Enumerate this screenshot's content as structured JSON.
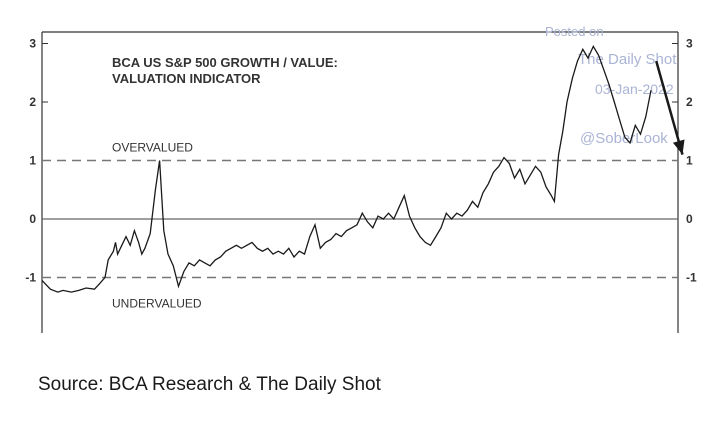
{
  "chart_data": {
    "type": "line",
    "title_line1": "BCA US S&P 500 GROWTH / VALUE:",
    "title_line2": "VALUATION INDICATOR",
    "ylim": [
      -2,
      3
    ],
    "yticks": [
      3,
      2,
      1,
      0,
      -1
    ],
    "grid": false,
    "reference_lines": [
      {
        "value": 1,
        "style": "dashed",
        "label": "OVERVALUED"
      },
      {
        "value": 0,
        "style": "solid",
        "label": ""
      },
      {
        "value": -1,
        "style": "dashed",
        "label": "UNDERVALUED"
      }
    ],
    "watermark": [
      "Posted on",
      "The Daily Shot",
      "03-Jan-2022",
      "@SoberLook"
    ],
    "series": [
      {
        "x": [
          0,
          8,
          15,
          20,
          28,
          35,
          42,
          50,
          55,
          60,
          63,
          68,
          70,
          72,
          76,
          80,
          84,
          88,
          92,
          95,
          98,
          103,
          108,
          112,
          116,
          120,
          125,
          130,
          135,
          140,
          145,
          150,
          155,
          160,
          165,
          170,
          175,
          180,
          185,
          190,
          195,
          200,
          205,
          210,
          215,
          220,
          225,
          230,
          235,
          240,
          245,
          250,
          255,
          260,
          265,
          270,
          275,
          280,
          285,
          290,
          295,
          300,
          305,
          310,
          315,
          320,
          325,
          330,
          335,
          340,
          345,
          350,
          355,
          360,
          365,
          370,
          375,
          380,
          385,
          390,
          395,
          400,
          405,
          410,
          415,
          420,
          425,
          430,
          435,
          440,
          445,
          450,
          455,
          460,
          465,
          470,
          475,
          480,
          485,
          488,
          492,
          496,
          500,
          505,
          510,
          515,
          520,
          525,
          530,
          535,
          540,
          545,
          550,
          555,
          560,
          565,
          570,
          575,
          580
        ],
        "values": [
          -1.05,
          -1.2,
          -1.25,
          -1.22,
          -1.25,
          -1.22,
          -1.18,
          -1.2,
          -1.1,
          -1.0,
          -0.7,
          -0.55,
          -0.4,
          -0.6,
          -0.45,
          -0.3,
          -0.45,
          -0.2,
          -0.4,
          -0.6,
          -0.5,
          -0.25,
          0.5,
          1.0,
          -0.2,
          -0.6,
          -0.8,
          -1.15,
          -0.9,
          -0.75,
          -0.8,
          -0.7,
          -0.75,
          -0.8,
          -0.7,
          -0.65,
          -0.55,
          -0.5,
          -0.45,
          -0.5,
          -0.45,
          -0.4,
          -0.5,
          -0.55,
          -0.5,
          -0.6,
          -0.55,
          -0.6,
          -0.5,
          -0.65,
          -0.55,
          -0.6,
          -0.3,
          -0.1,
          -0.5,
          -0.4,
          -0.35,
          -0.25,
          -0.3,
          -0.2,
          -0.15,
          -0.1,
          0.1,
          -0.05,
          -0.15,
          0.05,
          0.0,
          0.1,
          0.0,
          0.2,
          0.4,
          0.05,
          -0.15,
          -0.3,
          -0.4,
          -0.45,
          -0.3,
          -0.15,
          0.1,
          0.0,
          0.1,
          0.05,
          0.15,
          0.3,
          0.2,
          0.45,
          0.6,
          0.8,
          0.9,
          1.05,
          0.95,
          0.7,
          0.85,
          0.6,
          0.75,
          0.9,
          0.8,
          0.55,
          0.4,
          0.3,
          1.1,
          1.5,
          2.0,
          2.4,
          2.7,
          2.9,
          2.75,
          2.95,
          2.8,
          2.55,
          2.3,
          2.0,
          1.7,
          1.4,
          1.3,
          1.6,
          1.45,
          1.75,
          2.2
        ],
        "color": "#1a1a1a"
      }
    ],
    "arrow": {
      "from": [
        585,
        2.7
      ],
      "to": [
        610,
        1.1
      ]
    }
  },
  "source": "Source: BCA Research & The Daily Shot"
}
